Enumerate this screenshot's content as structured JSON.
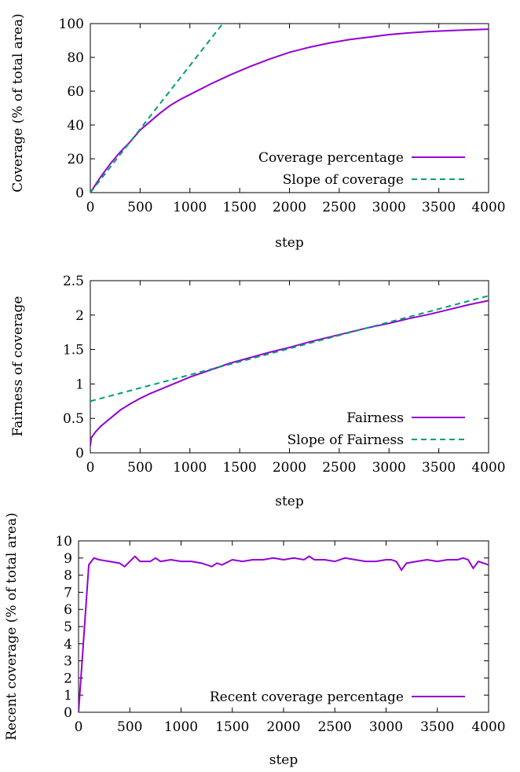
{
  "chart_data": [
    {
      "type": "line",
      "xlabel": "step",
      "ylabel": "Coverage (% of total area)",
      "xlim": [
        0,
        4000
      ],
      "ylim": [
        0,
        100
      ],
      "x_ticks": [
        0,
        500,
        1000,
        1500,
        2000,
        2500,
        3000,
        3500,
        4000
      ],
      "y_ticks": [
        0,
        20,
        40,
        60,
        80,
        100
      ],
      "grid": false,
      "legend_position": "bottom-right",
      "series": [
        {
          "name": "Coverage percentage",
          "style": "solid",
          "color": "#9400d3",
          "x": [
            0,
            100,
            200,
            300,
            400,
            500,
            600,
            700,
            800,
            900,
            1000,
            1200,
            1400,
            1600,
            1800,
            2000,
            2200,
            2400,
            2600,
            2800,
            3000,
            3200,
            3400,
            3600,
            3800,
            4000
          ],
          "y": [
            0,
            9,
            17,
            24,
            30,
            37,
            42,
            47,
            51.5,
            55,
            58,
            64,
            69.5,
            74.5,
            79,
            83,
            86,
            88.5,
            90.5,
            92,
            93.5,
            94.5,
            95.3,
            95.8,
            96.3,
            96.7
          ]
        },
        {
          "name": "Slope of coverage",
          "style": "dashed",
          "color": "#009e73",
          "x": [
            0,
            1330
          ],
          "y": [
            0,
            100
          ]
        }
      ]
    },
    {
      "type": "line",
      "xlabel": "step",
      "ylabel": "Fairness of coverage",
      "xlim": [
        0,
        4000
      ],
      "ylim": [
        0,
        2.5
      ],
      "x_ticks": [
        0,
        500,
        1000,
        1500,
        2000,
        2500,
        3000,
        3500,
        4000
      ],
      "y_ticks": [
        0,
        0.5,
        1,
        1.5,
        2,
        2.5
      ],
      "grid": false,
      "legend_position": "bottom-right",
      "series": [
        {
          "name": "Fairness",
          "style": "solid",
          "color": "#9400d3",
          "x": [
            0,
            10,
            50,
            100,
            200,
            300,
            400,
            500,
            600,
            700,
            800,
            900,
            1000,
            1200,
            1400,
            1600,
            1800,
            2000,
            2200,
            2400,
            2600,
            2800,
            3000,
            3200,
            3400,
            3600,
            3800,
            4000
          ],
          "y": [
            0.1,
            0.22,
            0.3,
            0.38,
            0.5,
            0.62,
            0.71,
            0.79,
            0.86,
            0.92,
            0.98,
            1.04,
            1.1,
            1.2,
            1.3,
            1.38,
            1.46,
            1.53,
            1.61,
            1.68,
            1.75,
            1.82,
            1.88,
            1.95,
            2.01,
            2.08,
            2.15,
            2.21
          ]
        },
        {
          "name": "Slope of Fairness",
          "style": "dashed",
          "color": "#009e73",
          "x": [
            0,
            4000
          ],
          "y": [
            0.75,
            2.28
          ]
        }
      ]
    },
    {
      "type": "line",
      "xlabel": "step",
      "ylabel": "Recent coverage (% of total area)",
      "xlim": [
        0,
        4000
      ],
      "ylim": [
        0,
        10
      ],
      "x_ticks": [
        0,
        500,
        1000,
        1500,
        2000,
        2500,
        3000,
        3500,
        4000
      ],
      "y_ticks": [
        0,
        1,
        2,
        3,
        4,
        5,
        6,
        7,
        8,
        9,
        10
      ],
      "grid": false,
      "legend_position": "bottom-right",
      "series": [
        {
          "name": "Recent coverage percentage",
          "style": "solid",
          "color": "#9400d3",
          "x": [
            0,
            100,
            150,
            200,
            300,
            400,
            450,
            500,
            550,
            600,
            700,
            750,
            800,
            900,
            1000,
            1100,
            1200,
            1300,
            1350,
            1400,
            1500,
            1600,
            1700,
            1800,
            1900,
            2000,
            2100,
            2200,
            2250,
            2300,
            2400,
            2500,
            2600,
            2700,
            2800,
            2900,
            3000,
            3050,
            3100,
            3150,
            3200,
            3300,
            3400,
            3500,
            3600,
            3700,
            3750,
            3800,
            3850,
            3900,
            3950,
            4000
          ],
          "y": [
            0,
            8.6,
            9.0,
            8.9,
            8.8,
            8.7,
            8.5,
            8.8,
            9.1,
            8.8,
            8.8,
            9.0,
            8.8,
            8.9,
            8.8,
            8.8,
            8.7,
            8.5,
            8.7,
            8.6,
            8.9,
            8.8,
            8.9,
            8.9,
            9.0,
            8.9,
            9.0,
            8.9,
            9.1,
            8.9,
            8.9,
            8.8,
            9.0,
            8.9,
            8.8,
            8.8,
            8.9,
            8.9,
            8.8,
            8.3,
            8.7,
            8.8,
            8.9,
            8.8,
            8.9,
            8.9,
            9.0,
            8.9,
            8.4,
            8.8,
            8.7,
            8.6
          ]
        }
      ]
    }
  ]
}
